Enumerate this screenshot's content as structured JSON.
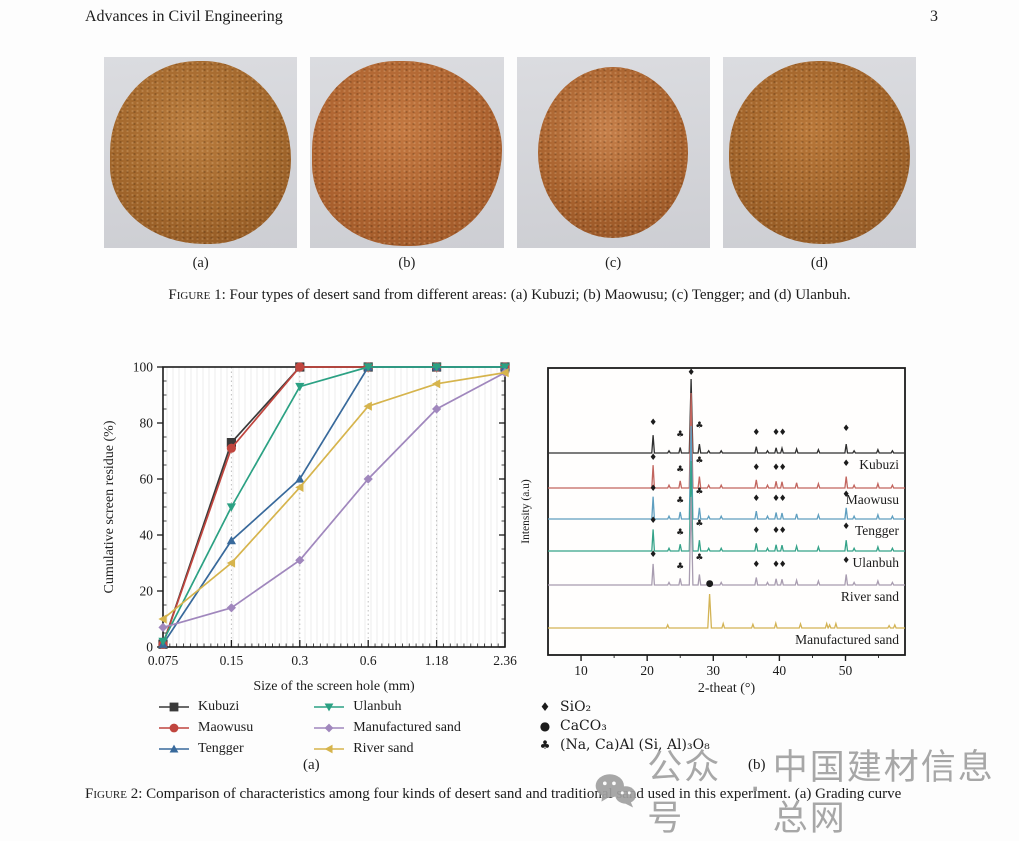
{
  "header": {
    "journal": "Advances in Civil Engineering",
    "page_number": "3"
  },
  "figure1": {
    "photos": [
      {
        "label": "(a)",
        "name": "Kubuzi desert sand pile",
        "color_light": "#b97c3e",
        "color_mid": "#a2672c",
        "color_dark": "#8a5220"
      },
      {
        "label": "(b)",
        "name": "Maowusu desert sand pile",
        "color_light": "#c37841",
        "color_mid": "#ad6330",
        "color_dark": "#975224"
      },
      {
        "label": "(c)",
        "name": "Tengger desert sand pile",
        "color_light": "#c57f4a",
        "color_mid": "#a8622e",
        "color_dark": "#8f4f22"
      },
      {
        "label": "(d)",
        "name": "Ulanbuh desert sand pile",
        "color_light": "#b87739",
        "color_mid": "#a0632a",
        "color_dark": "#88511f"
      }
    ],
    "caption_label": "Figure 1:",
    "caption_text": " Four types of desert sand from different areas: (a) Kubuzi; (b) Maowusu; (c) Tengger; and (d) Ulanbuh."
  },
  "figure2": {
    "sublabel_a": "(a)",
    "sublabel_b": "(b)",
    "caption_label": "Figure 2:",
    "caption_text": " Comparison of characteristics among four kinds of desert sand and traditional sand used in this experiment. (a) Grading curve"
  },
  "watermark": {
    "text_prefix": "公众号",
    "separator": "·",
    "text_main": "中国建材信息总网",
    "color": "#a0a0a0"
  },
  "chart_data": [
    {
      "id": "grading-curve",
      "type": "line",
      "xlabel": "Size of the screen hole (mm)",
      "ylabel": "Cumulative screen residue (%)",
      "categories": [
        "0.075",
        "0.15",
        "0.3",
        "0.6",
        "1.18",
        "2.36"
      ],
      "ylim": [
        0,
        100
      ],
      "yticks": [
        0,
        20,
        40,
        60,
        80,
        100
      ],
      "grid": "vertical-dotted",
      "legend_position": "below",
      "series": [
        {
          "name": "Kubuzi",
          "marker": "square",
          "color": "#3a3a3a",
          "values": [
            1,
            73,
            100,
            100,
            100,
            100
          ]
        },
        {
          "name": "Maowusu",
          "marker": "circle",
          "color": "#c0453e",
          "values": [
            1,
            71,
            100,
            100,
            100,
            100
          ]
        },
        {
          "name": "Tengger",
          "marker": "triangle-up",
          "color": "#38699b",
          "values": [
            1,
            38,
            60,
            100,
            100,
            100
          ]
        },
        {
          "name": "Ulanbuh",
          "marker": "triangle-down",
          "color": "#2ba183",
          "values": [
            2,
            50,
            93,
            100,
            100,
            100
          ]
        },
        {
          "name": "Manufactured sand",
          "marker": "diamond",
          "color": "#a087bd",
          "values": [
            7,
            14,
            31,
            60,
            85,
            98
          ]
        },
        {
          "name": "River sand",
          "marker": "triangle-left",
          "color": "#d6b44c",
          "values": [
            10,
            30,
            57,
            86,
            94,
            98
          ]
        }
      ],
      "legend_columns": [
        [
          "Kubuzi",
          "Maowusu",
          "Tengger"
        ],
        [
          "Ulanbuh",
          "Manufactured sand",
          "River sand"
        ]
      ]
    },
    {
      "id": "xrd-patterns",
      "type": "line-stack",
      "xlabel": "2-theat (°)",
      "ylabel": "Intensity (a.u)",
      "xlim": [
        5,
        59
      ],
      "xticks": [
        10,
        20,
        30,
        40,
        50
      ],
      "traces": [
        {
          "name": "Kubuzi",
          "color": "#2f2f2f",
          "baseline": 100,
          "peak_scale": 74,
          "pattern": "quartz"
        },
        {
          "name": "Maowusu",
          "color": "#c2655e",
          "baseline": 135,
          "peak_scale": 95,
          "pattern": "quartz"
        },
        {
          "name": "Tengger",
          "color": "#5f9fc0",
          "baseline": 166,
          "peak_scale": 93,
          "pattern": "quartz"
        },
        {
          "name": "Ulanbuh",
          "color": "#35a389",
          "baseline": 198,
          "peak_scale": 90,
          "pattern": "quartz"
        },
        {
          "name": "River sand",
          "color": "#a89cb0",
          "baseline": 232,
          "peak_scale": 88,
          "pattern": "quartz"
        },
        {
          "name": "Manufactured sand",
          "color": "#d3b354",
          "baseline": 275,
          "peak_scale": 34,
          "pattern": "calcite"
        }
      ],
      "peak_tables": {
        "quartz": [
          [
            20.9,
            0.24
          ],
          [
            23.3,
            0.03
          ],
          [
            25.0,
            0.075
          ],
          [
            26.65,
            1.0
          ],
          [
            27.9,
            0.12
          ],
          [
            29.3,
            0.03
          ],
          [
            31.2,
            0.03
          ],
          [
            36.5,
            0.085
          ],
          [
            38.2,
            0.03
          ],
          [
            39.5,
            0.07
          ],
          [
            40.4,
            0.065
          ],
          [
            42.6,
            0.055
          ],
          [
            45.9,
            0.045
          ],
          [
            50.1,
            0.12
          ],
          [
            51.3,
            0.03
          ],
          [
            54.9,
            0.045
          ],
          [
            57.1,
            0.03
          ]
        ],
        "calcite": [
          [
            23.1,
            0.09
          ],
          [
            29.45,
            1.0
          ],
          [
            31.5,
            0.13
          ],
          [
            36.0,
            0.11
          ],
          [
            39.45,
            0.14
          ],
          [
            43.2,
            0.12
          ],
          [
            47.15,
            0.13
          ],
          [
            47.6,
            0.09
          ],
          [
            48.55,
            0.13
          ],
          [
            56.6,
            0.07
          ],
          [
            57.45,
            0.09
          ]
        ]
      },
      "phase_marks_quartz": [
        {
          "x": 20.9,
          "dy": 28,
          "sym": "♦"
        },
        {
          "x": 25.0,
          "dy": 16,
          "sym": "♣"
        },
        {
          "x": 27.9,
          "dy": 25,
          "sym": "♣"
        },
        {
          "x": 36.5,
          "dy": 18,
          "sym": "♦"
        },
        {
          "x": 39.5,
          "dy": 18,
          "sym": "♦"
        },
        {
          "x": 40.5,
          "dy": 18,
          "sym": "♦"
        },
        {
          "x": 50.1,
          "dy": 22,
          "sym": "♦"
        }
      ],
      "main_peak_mark": {
        "x": 26.65,
        "sym": "♦"
      },
      "calcite_mark": {
        "x": 29.45,
        "dy": 42,
        "sym": "●"
      },
      "legend": [
        {
          "symbol": "♦",
          "label": "SiO₂"
        },
        {
          "symbol": "●",
          "label": "CaCO₃"
        },
        {
          "symbol": "♣",
          "label": "(Na, Ca)Al (Si, Al)₃O₈"
        }
      ]
    }
  ]
}
